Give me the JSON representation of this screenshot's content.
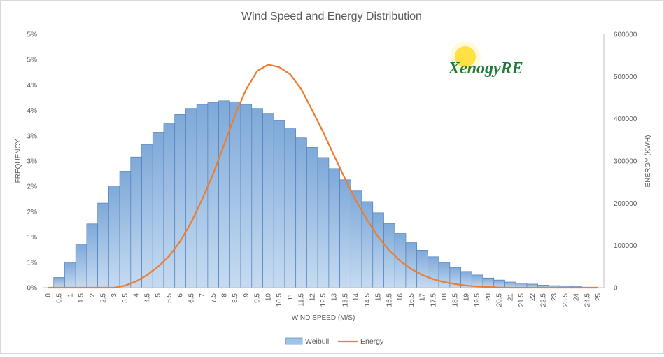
{
  "chart_data": {
    "type": "bar",
    "title": "Wind Speed and Energy Distribution",
    "xlabel": "WIND SPEED (M/S)",
    "ylabel": "FREQUENCY",
    "y2label": "ENERGY (KWH)",
    "logo_text": "XenogyRE",
    "categories": [
      "0",
      "0.5",
      "1",
      "1.5",
      "2",
      "2.5",
      "3",
      "3.5",
      "4",
      "4.5",
      "5",
      "5.5",
      "6",
      "6.5",
      "7",
      "7.5",
      "8",
      "8.5",
      "9",
      "9.5",
      "10",
      "10.5",
      "11",
      "11.5",
      "12",
      "12.5",
      "13",
      "13.5",
      "14",
      "14.5",
      "15",
      "15.5",
      "16",
      "16.5",
      "17",
      "17.5",
      "18",
      "18.5",
      "19",
      "19.5",
      "20",
      "20.5",
      "21",
      "21.5",
      "22",
      "22.5",
      "23",
      "23.5",
      "24",
      "24.5",
      "25"
    ],
    "ylim": [
      0,
      0.05
    ],
    "y_tick_labels": [
      "0%",
      "1%",
      "1%",
      "2%",
      "2%",
      "3%",
      "3%",
      "4%",
      "4%",
      "5%",
      "5%"
    ],
    "y2lim": [
      0,
      600000
    ],
    "y2_tick_labels": [
      "0",
      "100000",
      "200000",
      "300000",
      "400000",
      "500000",
      "600000"
    ],
    "grid": false,
    "legend_position": "bottom",
    "series": [
      {
        "name": "Weibull",
        "type": "bar",
        "color": "#9dc3e6",
        "values": [
          0,
          0.002,
          0.005,
          0.0086,
          0.0126,
          0.0167,
          0.0201,
          0.023,
          0.0258,
          0.0283,
          0.0306,
          0.0325,
          0.0342,
          0.0354,
          0.0362,
          0.0366,
          0.0369,
          0.0367,
          0.0362,
          0.0354,
          0.0343,
          0.033,
          0.0314,
          0.0296,
          0.0277,
          0.0257,
          0.0235,
          0.0213,
          0.0191,
          0.017,
          0.0148,
          0.0127,
          0.0107,
          0.0089,
          0.0074,
          0.0061,
          0.0049,
          0.004,
          0.0032,
          0.0025,
          0.0019,
          0.0015,
          0.0011,
          0.0009,
          0.0007,
          0.0005,
          0.0004,
          0.0003,
          0.0002,
          0.0001,
          0
        ]
      },
      {
        "name": "Energy",
        "type": "line",
        "color": "#ed7d31",
        "values": [
          0,
          0,
          0,
          0,
          0,
          0,
          0,
          5000,
          15000,
          30000,
          50000,
          75000,
          110000,
          155000,
          210000,
          270000,
          340000,
          410000,
          470000,
          513000,
          528000,
          522000,
          505000,
          470000,
          420000,
          368000,
          312000,
          257000,
          205000,
          160000,
          120000,
          88000,
          63000,
          44000,
          30000,
          20000,
          13000,
          8500,
          5000,
          2800,
          1500,
          500,
          0,
          0,
          0,
          0,
          0,
          0,
          0,
          0,
          0
        ]
      }
    ]
  }
}
